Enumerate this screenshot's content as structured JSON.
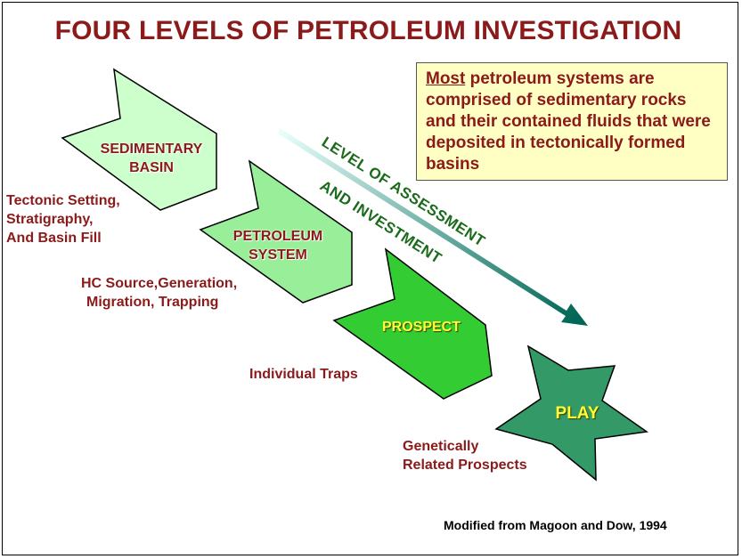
{
  "title": "FOUR LEVELS OF PETROLEUM INVESTIGATION",
  "note": {
    "emphasis": "Most",
    "text": " petroleum systems are comprised of sedimentary rocks and their contained fluids that were deposited in tectonically formed basins"
  },
  "levels": [
    {
      "line1": "SEDIMENTARY",
      "line2": "BASIN",
      "description": [
        "Tectonic Setting,",
        "Stratigraphy,",
        "And Basin Fill"
      ],
      "color": "#ccffcc"
    },
    {
      "line1": "PETROLEUM",
      "line2": "SYSTEM",
      "description": [
        "HC Source,Generation,",
        "Migration, Trapping"
      ],
      "color": "#99ee99"
    },
    {
      "line1": "PROSPECT",
      "line2": "",
      "description": [
        "Individual Traps"
      ],
      "color": "#33cc33"
    },
    {
      "line1": "PLAY",
      "line2": "",
      "description": [
        "Genetically",
        "Related Prospects"
      ],
      "color": "#339966"
    }
  ],
  "arrow": {
    "line1": "LEVEL OF  ASSESSMENT",
    "line2": "AND INVESTMENT",
    "color_start": "#e8fffb",
    "color_end": "#006655"
  },
  "credit": "Modified from Magoon and Dow, 1994"
}
